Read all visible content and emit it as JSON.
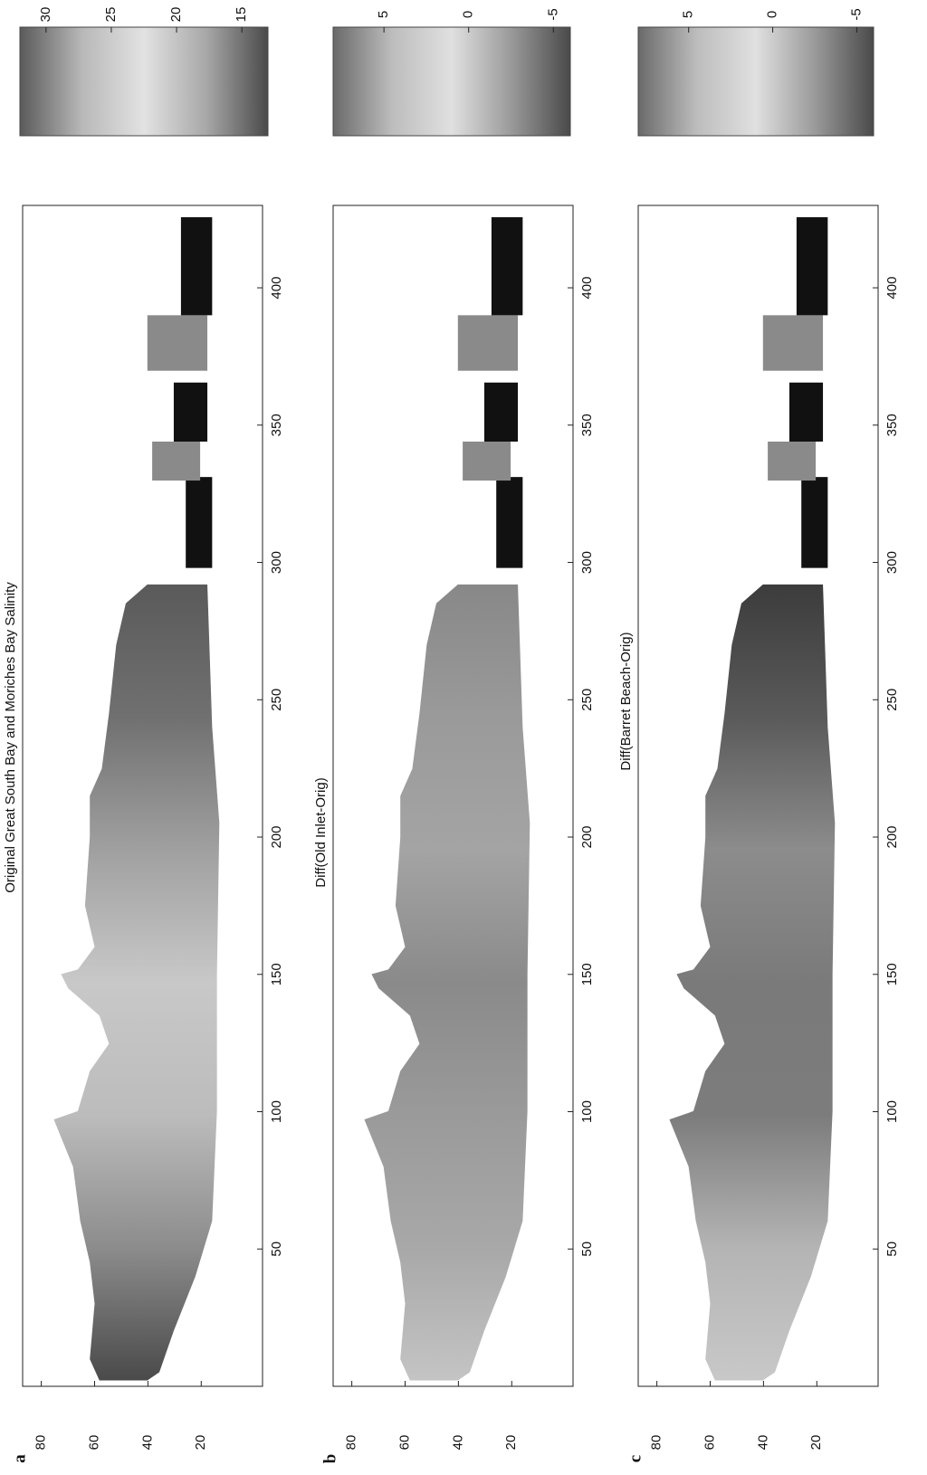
{
  "chart_data": [
    {
      "type": "map",
      "label": "a",
      "title": "Original Great South Bay and Moriches Bay Salinity",
      "xlim": [
        0,
        430
      ],
      "xticks": [
        50,
        100,
        150,
        200,
        250,
        300,
        350,
        400
      ],
      "ylim": [
        -3,
        87
      ],
      "yticks": [
        80,
        60,
        40,
        20
      ],
      "clim": [
        13,
        32
      ],
      "cticks": [
        30,
        25,
        20,
        15
      ],
      "colormap": [
        "#5a5a5a",
        "#b8b8b8",
        "#e2e2e2",
        "#a8a8a8",
        "#4a4a4a"
      ]
    },
    {
      "type": "map",
      "label": "b",
      "title": "Diff(Old Inlet-Orig)",
      "xlim": [
        0,
        430
      ],
      "xticks": [
        50,
        100,
        150,
        200,
        250,
        300,
        350,
        400
      ],
      "ylim": [
        -3,
        87
      ],
      "yticks": [
        80,
        60,
        40,
        20
      ],
      "clim": [
        -6,
        8
      ],
      "cticks": [
        5,
        0,
        -5
      ],
      "colormap": [
        "#6a6a6a",
        "#bdbdbd",
        "#e0e0e0",
        "#9a9a9a",
        "#4a4a4a"
      ]
    },
    {
      "type": "map",
      "label": "c",
      "title": "Diff(Barret Beach-Orig)",
      "xlim": [
        0,
        430
      ],
      "xticks": [
        50,
        100,
        150,
        200,
        250,
        300,
        350,
        400
      ],
      "ylim": [
        -3,
        87
      ],
      "yticks": [
        80,
        60,
        40,
        20
      ],
      "clim": [
        -6,
        8
      ],
      "cticks": [
        5,
        0,
        -5
      ],
      "colormap": [
        "#6a6a6a",
        "#bdbdbd",
        "#e0e0e0",
        "#9a9a9a",
        "#4a4a4a"
      ]
    }
  ]
}
